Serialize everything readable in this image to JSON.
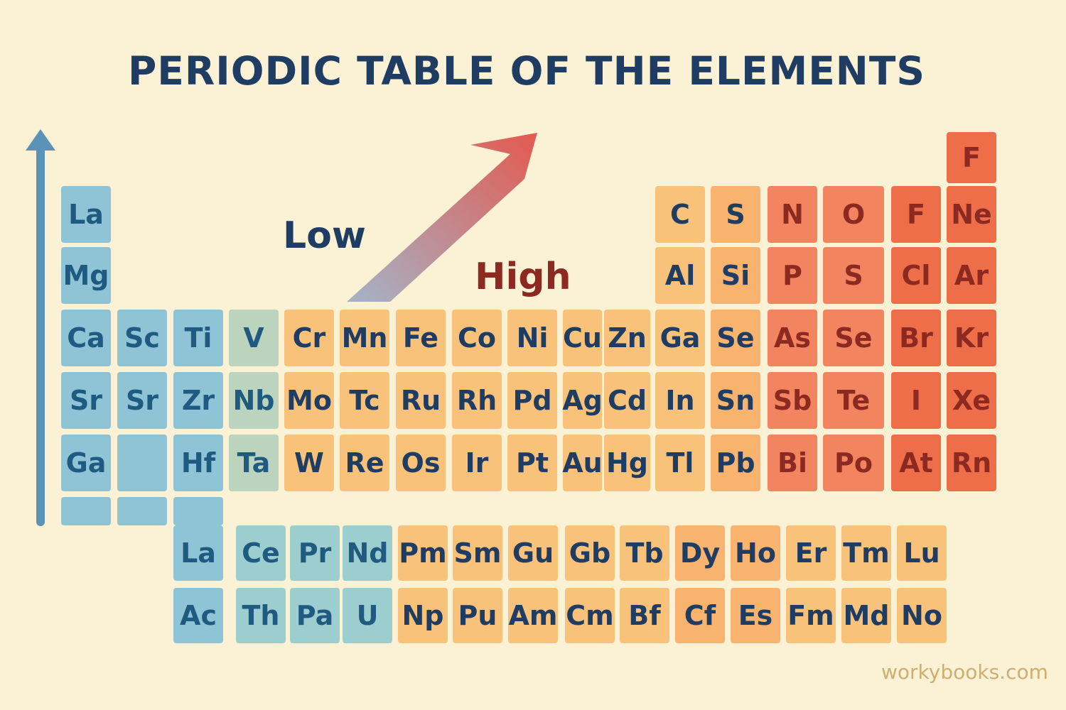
{
  "title": "PERIODIC TABLE OF THE ELEMENTS",
  "labels": {
    "low": "Low",
    "high": "High"
  },
  "watermark": "workybooks.com",
  "icons": {
    "vertical_arrow": "up-arrow-icon",
    "diagonal_arrow": "diagonal-arrow-icon"
  },
  "colors": {
    "background": "#fbf2d6",
    "title": "#1f3d63",
    "low_label": "#1f3d63",
    "high_label": "#8c2a22",
    "vertical_arrow": "#5b93b8",
    "diagonal_arrow_start": "#a4b4c8",
    "diagonal_arrow_end": "#e35a4f",
    "levels": {
      "blue": "#8fc3d6",
      "blue2": "#9ccdcf",
      "sage": "#bcd4bd",
      "orange": "#f9c27a",
      "orange2": "#f8b36e",
      "red": "#f28560",
      "red2": "#ef6e4a"
    }
  },
  "main_rows": [
    [
      "La",
      "",
      "",
      "",
      "",
      "",
      "",
      "",
      "",
      "",
      "",
      "C",
      "S",
      "N",
      "O",
      "F",
      "Ne"
    ],
    [
      "Mg",
      "",
      "",
      "",
      "",
      "",
      "",
      "",
      "",
      "",
      "",
      "Al",
      "Si",
      "P",
      "S",
      "Cl",
      "Ar"
    ],
    [
      "Ca",
      "Sc",
      "Ti",
      "V",
      "Cr",
      "Mn",
      "Fe",
      "Co",
      "Ni",
      "Cu",
      "Zn",
      "Ga",
      "Se",
      "As",
      "Se",
      "Br",
      "Kr"
    ],
    [
      "Sr",
      "Sr",
      "Zr",
      "Nb",
      "Mo",
      "Tc",
      "Ru",
      "Rh",
      "Pd",
      "Ag",
      "Cd",
      "In",
      "Sn",
      "Sb",
      "Te",
      "I",
      "Xe"
    ],
    [
      "Ga",
      "",
      "Hf",
      "Ta",
      "W",
      "Re",
      "Os",
      "Ir",
      "Pt",
      "Au",
      "Hg",
      "Tl",
      "Pb",
      "Bi",
      "Po",
      "At",
      "Rn"
    ]
  ],
  "top_extra": "F",
  "lanthanides": [
    "La",
    "Ce",
    "Pr",
    "Nd",
    "Pm",
    "Sm",
    "Gu",
    "Gb",
    "Tb",
    "Dy",
    "Ho",
    "Er",
    "Tm",
    "Lu"
  ],
  "actinides": [
    "Ac",
    "Th",
    "Pa",
    "U",
    "Np",
    "Pu",
    "Am",
    "Cm",
    "Bf",
    "Cf",
    "Es",
    "Fm",
    "Md",
    "No"
  ]
}
